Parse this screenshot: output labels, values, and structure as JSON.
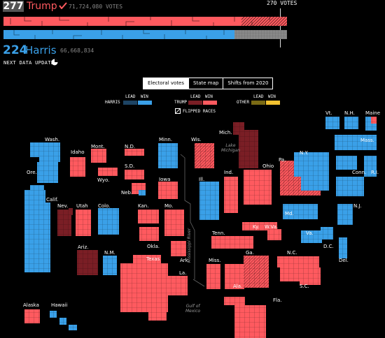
{
  "header": {
    "trump": {
      "electoral_votes": "277",
      "name": "Trump",
      "popular_votes": "71,724,080 VOTES"
    },
    "harris": {
      "electoral_votes": "224",
      "name": "Harris",
      "popular_votes": "66,668,834"
    },
    "threshold_label": "270 VOTES",
    "next_update_label": "NEXT DATA UPDATE"
  },
  "bars": {
    "trump_fraction": 1.0,
    "harris_fraction": 0.81
  },
  "tabs": [
    {
      "label": "Electoral votes",
      "active": true
    },
    {
      "label": "State map",
      "active": false
    },
    {
      "label": "Shifts from 2020",
      "active": false
    }
  ],
  "legend": {
    "lead": "LEAD",
    "win": "WIN",
    "harris": "HARRIS",
    "trump": "TRUMP",
    "other": "OTHER",
    "flipped": "FLIPPED RACES"
  },
  "colors": {
    "trump_win": "#ff5a5f",
    "trump_lead": "#7a1e25",
    "harris_win": "#3aa0e8",
    "harris_lead": "#1d4464",
    "other_lead": "#7a6a14",
    "other_win": "#f2c230",
    "background": "#000000"
  },
  "states": [
    {
      "label": "Wash."
    },
    {
      "label": "Ore."
    },
    {
      "label": "Calif."
    },
    {
      "label": "Idaho"
    },
    {
      "label": "Nev."
    },
    {
      "label": "Utah"
    },
    {
      "label": "Ariz."
    },
    {
      "label": "Mont."
    },
    {
      "label": "Wyo."
    },
    {
      "label": "Colo."
    },
    {
      "label": "N.M."
    },
    {
      "label": "N.D."
    },
    {
      "label": "S.D."
    },
    {
      "label": "Neb."
    },
    {
      "label": "Kan."
    },
    {
      "label": "Okla."
    },
    {
      "label": "Texas"
    },
    {
      "label": "Minn."
    },
    {
      "label": "Iowa"
    },
    {
      "label": "Mo."
    },
    {
      "label": "Ark."
    },
    {
      "label": "La."
    },
    {
      "label": "Wis."
    },
    {
      "label": "Ill."
    },
    {
      "label": "Mich."
    },
    {
      "label": "Ind."
    },
    {
      "label": "Ohio"
    },
    {
      "label": "Ky."
    },
    {
      "label": "Tenn."
    },
    {
      "label": "Miss."
    },
    {
      "label": "Ala."
    },
    {
      "label": "Ga."
    },
    {
      "label": "Fla."
    },
    {
      "label": "S.C."
    },
    {
      "label": "N.C."
    },
    {
      "label": "Va."
    },
    {
      "label": "W.Va."
    },
    {
      "label": "Pa."
    },
    {
      "label": "N.Y."
    },
    {
      "label": "Vt."
    },
    {
      "label": "N.H."
    },
    {
      "label": "Maine"
    },
    {
      "label": "Mass."
    },
    {
      "label": "Conn."
    },
    {
      "label": "R.I."
    },
    {
      "label": "N.J."
    },
    {
      "label": "Md."
    },
    {
      "label": "Del."
    },
    {
      "label": "D.C."
    },
    {
      "label": "Alaska"
    },
    {
      "label": "Hawaii"
    }
  ],
  "geo_labels": {
    "lake_michigan": "Lake\nMichigan",
    "mississippi": "Mississippi River",
    "gulf": "Gulf of\nMexico"
  }
}
